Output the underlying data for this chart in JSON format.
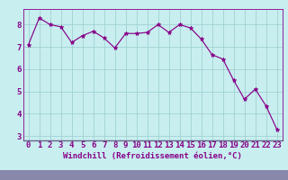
{
  "x": [
    0,
    1,
    2,
    3,
    4,
    5,
    6,
    7,
    8,
    9,
    10,
    11,
    12,
    13,
    14,
    15,
    16,
    17,
    18,
    19,
    20,
    21,
    22,
    23
  ],
  "y": [
    7.1,
    8.3,
    8.0,
    7.9,
    7.2,
    7.5,
    7.7,
    7.4,
    6.95,
    7.6,
    7.6,
    7.65,
    8.0,
    7.65,
    8.0,
    7.85,
    7.35,
    6.65,
    6.45,
    5.5,
    4.65,
    5.1,
    4.35,
    3.3
  ],
  "line_color": "#880088",
  "marker": "*",
  "marker_size": 3.5,
  "bg_color": "#c8eef0",
  "grid_color": "#99cccc",
  "xlabel": "Windchill (Refroidissement éolien,°C)",
  "ylim_min": 2.8,
  "ylim_max": 8.7,
  "xlim_min": -0.5,
  "xlim_max": 23.5,
  "yticks": [
    3,
    4,
    5,
    6,
    7,
    8
  ],
  "xticks": [
    0,
    1,
    2,
    3,
    4,
    5,
    6,
    7,
    8,
    9,
    10,
    11,
    12,
    13,
    14,
    15,
    16,
    17,
    18,
    19,
    20,
    21,
    22,
    23
  ],
  "xlabel_fontsize": 6.5,
  "tick_fontsize": 6.5,
  "tick_color": "#880088",
  "border_color": "#880088",
  "spine_color": "#666688",
  "bottom_bg": "#8888aa"
}
